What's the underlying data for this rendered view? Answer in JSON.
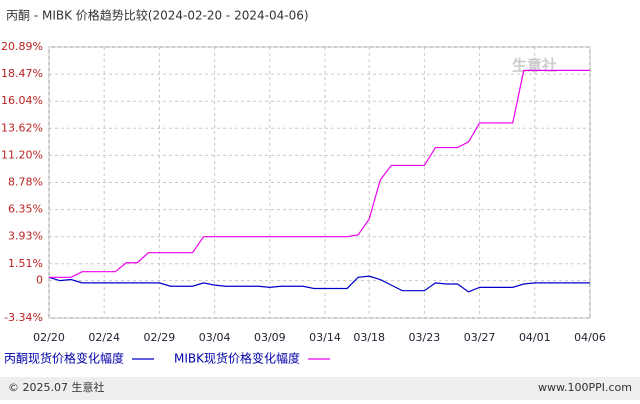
{
  "chart_data": {
    "type": "line",
    "title": "丙酮 - MIBK 价格趋势比较(2024-02-20 - 2024-04-06)",
    "watermark": "生意社",
    "footer_left": "© 2025.07 生意社",
    "footer_right": "www.100PPI.com",
    "categories": [
      "02/20",
      null,
      null,
      null,
      null,
      "02/24",
      null,
      null,
      null,
      null,
      "02/29",
      null,
      null,
      null,
      null,
      "03/04",
      null,
      null,
      null,
      null,
      "03/09",
      null,
      null,
      null,
      null,
      "03/14",
      null,
      null,
      null,
      "03/18",
      null,
      null,
      null,
      null,
      "03/23",
      null,
      null,
      null,
      null,
      "03/27",
      null,
      null,
      null,
      null,
      "04/01",
      null,
      null,
      null,
      null,
      "04/06"
    ],
    "series": [
      {
        "name": "丙酮现货价格变化幅度",
        "color": "#0000cc",
        "values": [
          0.3,
          0,
          0.1,
          -0.2,
          -0.2,
          -0.2,
          -0.2,
          -0.2,
          -0.2,
          -0.2,
          -0.2,
          -0.5,
          -0.5,
          -0.5,
          -0.2,
          -0.4,
          -0.5,
          -0.5,
          -0.5,
          -0.5,
          -0.6,
          -0.5,
          -0.5,
          -0.5,
          -0.7,
          -0.7,
          -0.7,
          -0.7,
          0.3,
          0.4,
          0.1,
          -0.4,
          -0.9,
          -0.9,
          -0.9,
          -0.2,
          -0.3,
          -0.3,
          -1.0,
          -0.6,
          -0.6,
          -0.6,
          -0.6,
          -0.3,
          -0.2,
          -0.2,
          -0.2,
          -0.2,
          -0.2,
          -0.2
        ]
      },
      {
        "name": "MIBK现货价格变化幅度",
        "color": "#ee00ee",
        "values": [
          0.3,
          0.3,
          0.3,
          0.8,
          0.8,
          0.8,
          0.8,
          1.6,
          1.6,
          2.5,
          2.5,
          2.5,
          2.5,
          2.5,
          3.93,
          3.93,
          3.93,
          3.93,
          3.93,
          3.93,
          3.93,
          3.93,
          3.93,
          3.93,
          3.93,
          3.93,
          3.93,
          3.93,
          4.1,
          5.5,
          9.0,
          10.3,
          10.3,
          10.3,
          10.3,
          11.9,
          11.9,
          11.9,
          12.4,
          14.1,
          14.1,
          14.1,
          14.1,
          18.8,
          18.8,
          18.8,
          18.8,
          18.8,
          18.8,
          18.8
        ]
      }
    ],
    "ylim": [
      -3.34,
      20.89
    ],
    "yticks": [
      {
        "value": -3.34,
        "label": "-3.34%"
      },
      0,
      {
        "value": 1.51,
        "label": "1.51%"
      },
      {
        "value": 3.93,
        "label": "3.93%"
      },
      {
        "value": 6.35,
        "label": "6.35%"
      },
      {
        "value": 8.78,
        "label": "8.78%"
      },
      {
        "value": 11.2,
        "label": "11.20%"
      },
      {
        "value": 13.62,
        "label": "13.62%"
      },
      {
        "value": 16.04,
        "label": "16.04%"
      },
      {
        "value": 18.47,
        "label": "18.47%"
      },
      {
        "value": 20.89,
        "label": "20.89%"
      }
    ],
    "grid": true
  }
}
